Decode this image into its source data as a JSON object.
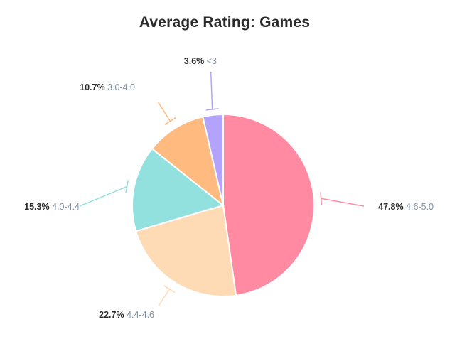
{
  "chart_data": {
    "type": "pie",
    "title": "Average Rating: Games",
    "slices": [
      {
        "label": "4.6-5.0",
        "value": 47.8,
        "display": "47.8%",
        "color": "#ff8aa1"
      },
      {
        "label": "4.4-4.6",
        "value": 22.7,
        "display": "22.7%",
        "color": "#ffdbb5"
      },
      {
        "label": "4.0-4.4",
        "value": 15.3,
        "display": "15.3%",
        "color": "#92e1df"
      },
      {
        "label": "3.0-4.0",
        "value": 10.7,
        "display": "10.7%",
        "color": "#ffba80"
      },
      {
        "label": "<3",
        "value": 3.6,
        "display": "3.6%",
        "color": "#b4a2ff"
      }
    ],
    "legend": "none"
  }
}
